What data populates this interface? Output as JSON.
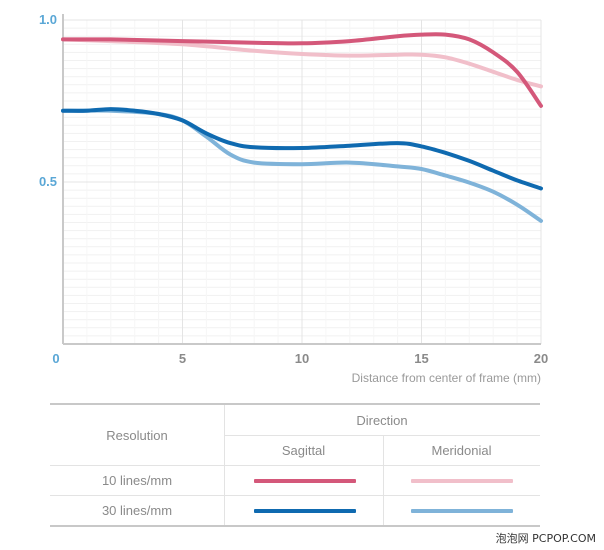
{
  "chart_data": {
    "type": "line",
    "xlabel": "Distance from center of frame (mm)",
    "xlim": [
      0,
      20
    ],
    "ylim": [
      0,
      1.0
    ],
    "x_ticks": [
      0,
      5,
      10,
      15,
      20
    ],
    "y_ticks": [
      1.0,
      0.5
    ],
    "y_tick_labels": [
      "1.0",
      "0.5"
    ],
    "grid": true,
    "series": [
      {
        "color": "#d4587a",
        "values": [
          [
            0,
            0.94
          ],
          [
            2,
            0.94
          ],
          [
            5,
            0.935
          ],
          [
            8,
            0.93
          ],
          [
            10,
            0.928
          ],
          [
            12,
            0.935
          ],
          [
            14,
            0.95
          ],
          [
            15,
            0.955
          ],
          [
            16,
            0.955
          ],
          [
            17,
            0.94
          ],
          [
            18,
            0.9
          ],
          [
            19,
            0.84
          ],
          [
            20,
            0.735
          ]
        ]
      },
      {
        "color": "#f1bfca",
        "values": [
          [
            0,
            0.94
          ],
          [
            2,
            0.935
          ],
          [
            5,
            0.925
          ],
          [
            8,
            0.905
          ],
          [
            10,
            0.895
          ],
          [
            12,
            0.89
          ],
          [
            14,
            0.893
          ],
          [
            15,
            0.893
          ],
          [
            16,
            0.885
          ],
          [
            17,
            0.865
          ],
          [
            18,
            0.84
          ],
          [
            19,
            0.815
          ],
          [
            20,
            0.795
          ]
        ]
      },
      {
        "color": "#0f6ab0",
        "values": [
          [
            0,
            0.72
          ],
          [
            1,
            0.72
          ],
          [
            2,
            0.725
          ],
          [
            3,
            0.72
          ],
          [
            4,
            0.71
          ],
          [
            5,
            0.69
          ],
          [
            6,
            0.65
          ],
          [
            7,
            0.62
          ],
          [
            8,
            0.607
          ],
          [
            10,
            0.605
          ],
          [
            12,
            0.612
          ],
          [
            14,
            0.62
          ],
          [
            15,
            0.61
          ],
          [
            16,
            0.59
          ],
          [
            17,
            0.565
          ],
          [
            18,
            0.535
          ],
          [
            19,
            0.505
          ],
          [
            20,
            0.48
          ]
        ]
      },
      {
        "color": "#7fb3d9",
        "values": [
          [
            0,
            0.72
          ],
          [
            2,
            0.72
          ],
          [
            4,
            0.71
          ],
          [
            5,
            0.69
          ],
          [
            6,
            0.64
          ],
          [
            7,
            0.585
          ],
          [
            8,
            0.56
          ],
          [
            10,
            0.555
          ],
          [
            12,
            0.56
          ],
          [
            14,
            0.548
          ],
          [
            15,
            0.54
          ],
          [
            16,
            0.52
          ],
          [
            17,
            0.498
          ],
          [
            18,
            0.47
          ],
          [
            19,
            0.43
          ],
          [
            20,
            0.38
          ]
        ]
      }
    ]
  },
  "legend": {
    "direction_label": "Direction",
    "resolution_label": "Resolution",
    "sagittal_label": "Sagittal",
    "meridional_label": "Meridonial",
    "row1_label": "10 lines/mm",
    "row2_label": "30 lines/mm",
    "colors": {
      "s10": "#d4587a",
      "m10": "#f1bfca",
      "s30": "#0f6ab0",
      "m30": "#7fb3d9"
    }
  },
  "watermark": "泡泡网 PCPOP.COM"
}
